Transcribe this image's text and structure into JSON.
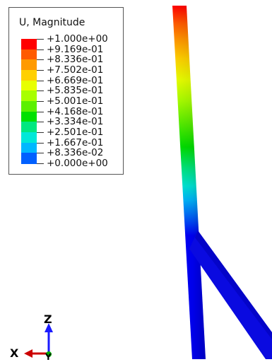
{
  "legend": {
    "title": "U, Magnitude",
    "levels": [
      {
        "value": "+1.000e+00",
        "color": "#ff0000"
      },
      {
        "value": "+9.169e-01",
        "color": "#ff5a00"
      },
      {
        "value": "+8.336e-01",
        "color": "#ff9a00"
      },
      {
        "value": "+7.502e-01",
        "color": "#ffd000"
      },
      {
        "value": "+6.669e-01",
        "color": "#e8ff00"
      },
      {
        "value": "+5.835e-01",
        "color": "#a8ff00"
      },
      {
        "value": "+5.001e-01",
        "color": "#5cf000"
      },
      {
        "value": "+4.168e-01",
        "color": "#00e000"
      },
      {
        "value": "+3.334e-01",
        "color": "#00e880"
      },
      {
        "value": "+2.501e-01",
        "color": "#00e8d8"
      },
      {
        "value": "+1.667e-01",
        "color": "#00b8ff"
      },
      {
        "value": "+8.336e-02",
        "color": "#0060ff"
      },
      {
        "value": "+0.000e+00",
        "color": "#0000ff"
      }
    ]
  },
  "triad": {
    "z_label": "Z",
    "x_label": "X",
    "y_label": "Y",
    "z_color": "#1a1aff",
    "x_color": "#cc0000",
    "y_color": "#00aa00"
  }
}
